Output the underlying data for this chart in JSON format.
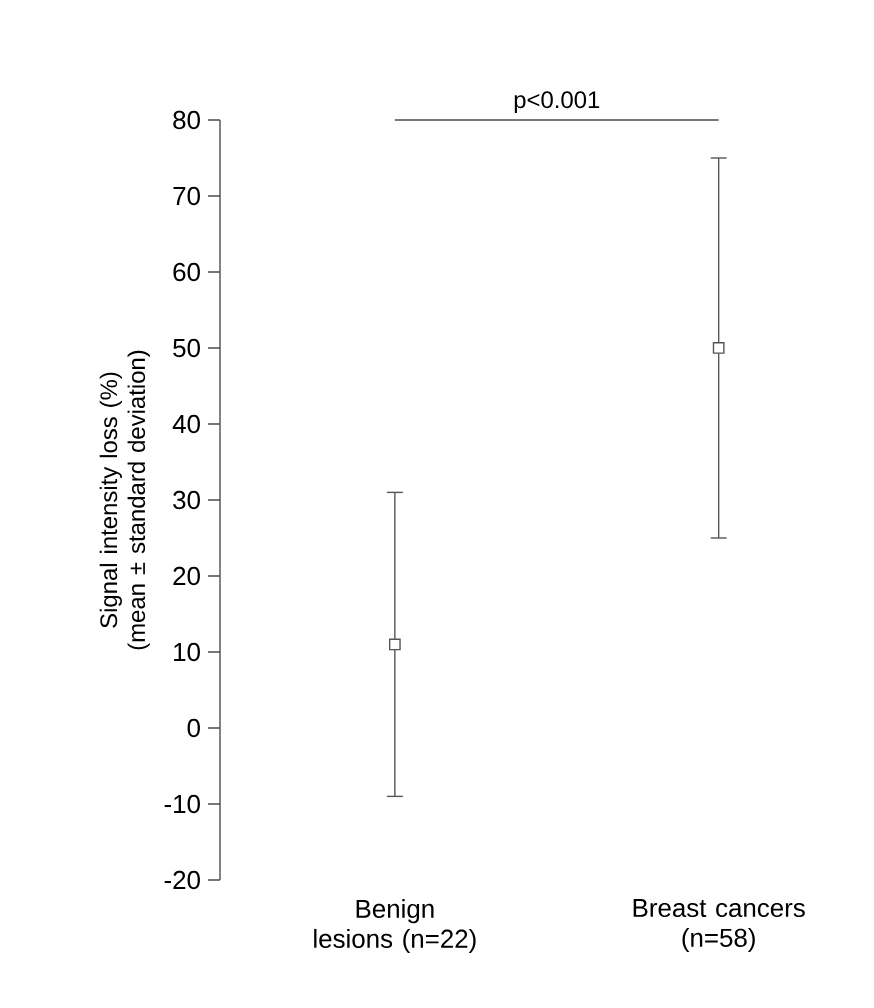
{
  "chart_data": {
    "type": "scatter",
    "ylabel": "Signal intensity loss (%) (mean ± standard deviation)",
    "categories": [
      "Benign lesions (n=22)",
      "Breast cancers (n=58)"
    ],
    "series": [
      {
        "color": "#555555",
        "values": [
          11,
          50
        ],
        "errors": [
          20,
          25
        ]
      }
    ],
    "marker": "square",
    "ylim": [
      -20,
      80
    ],
    "yticks": [
      -20,
      -10,
      0,
      10,
      20,
      30,
      40,
      50,
      60,
      70,
      80
    ],
    "annotations": [
      "p<0.001"
    ]
  }
}
